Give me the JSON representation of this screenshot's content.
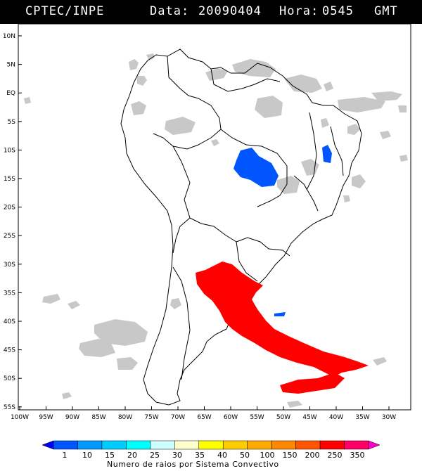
{
  "header": {
    "source": "CPTEC/INPE",
    "date_label": "Data:",
    "date_value": "20090404",
    "hour_label": "Hora:",
    "hour_value": "0545",
    "tz": "GMT"
  },
  "lat_labels": [
    "10N",
    "5N",
    "EQ",
    "5S",
    "10S",
    "15S",
    "20S",
    "25S",
    "30S",
    "35S",
    "40S",
    "45S",
    "50S",
    "55S"
  ],
  "lon_labels": [
    "100W",
    "95W",
    "90W",
    "85W",
    "80W",
    "75W",
    "70W",
    "65W",
    "60W",
    "55W",
    "50W",
    "45W",
    "40W",
    "35W",
    "30W"
  ],
  "colorbar": {
    "ticks": [
      "1",
      "10",
      "15",
      "20",
      "25",
      "30",
      "35",
      "40",
      "50",
      "100",
      "150",
      "200",
      "250",
      "350"
    ],
    "colors": [
      "#0000ff",
      "#0055ff",
      "#0099ff",
      "#00ccff",
      "#00ffff",
      "#ccffff",
      "#ffffcc",
      "#ffff00",
      "#ffcc00",
      "#ffaa00",
      "#ff8800",
      "#ff5500",
      "#ff0000",
      "#ff0066",
      "#ff00cc"
    ],
    "caption": "Numero de raios por Sistema Convectivo"
  },
  "legend_colors": {
    "cloud": "#c8c8c8",
    "red_system": "#ff0000",
    "blue_system": "#0055ff"
  }
}
